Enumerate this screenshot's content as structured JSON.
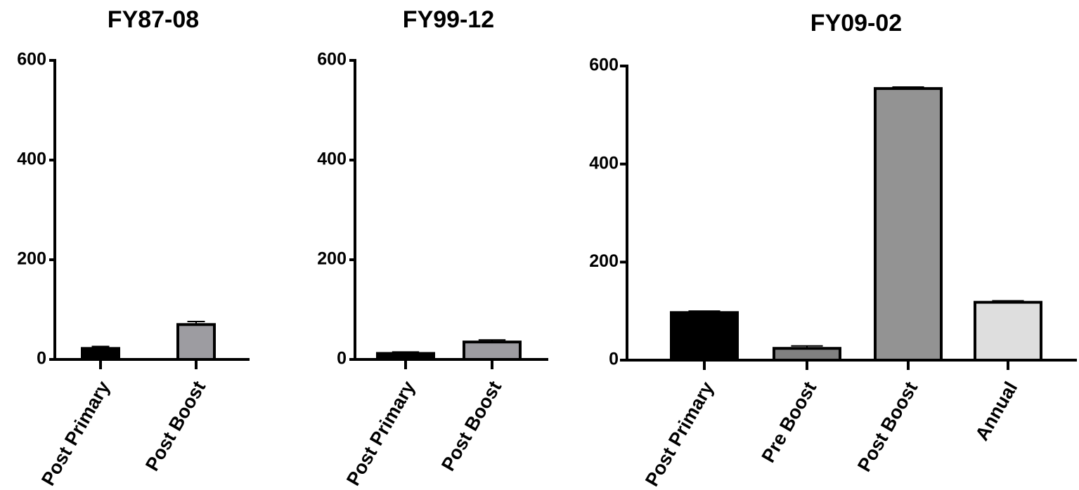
{
  "chart_data": [
    {
      "type": "bar",
      "title": "FY87-08",
      "xlabel": "",
      "ylabel": "",
      "ylim": [
        0,
        600
      ],
      "yticks": [
        0,
        200,
        400,
        600
      ],
      "grid": false,
      "categories": [
        "Post Primary",
        "Post Boost"
      ],
      "values": [
        22,
        70
      ],
      "errors": [
        4,
        6
      ],
      "colors": [
        "#000000",
        "#9d9ca1"
      ]
    },
    {
      "type": "bar",
      "title": "FY99-12",
      "xlabel": "",
      "ylabel": "",
      "ylim": [
        0,
        600
      ],
      "yticks": [
        0,
        200,
        400,
        600
      ],
      "grid": false,
      "categories": [
        "Post Primary",
        "Post Boost"
      ],
      "values": [
        12,
        35
      ],
      "errors": [
        3,
        4
      ],
      "colors": [
        "#000000",
        "#9d9ca1"
      ]
    },
    {
      "type": "bar",
      "title": "FY09-02",
      "xlabel": "",
      "ylabel": "",
      "ylim": [
        0,
        600
      ],
      "yticks": [
        0,
        200,
        400,
        600
      ],
      "grid": false,
      "categories": [
        "Post Primary",
        "Pre Boost",
        "Post Boost",
        "Annual"
      ],
      "values": [
        97,
        24,
        554,
        118
      ],
      "errors": [
        3,
        5,
        3,
        3
      ],
      "colors": [
        "#000000",
        "#808080",
        "#939393",
        "#dedede"
      ]
    }
  ]
}
